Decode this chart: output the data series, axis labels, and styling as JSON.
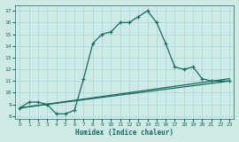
{
  "xlabel": "Humidex (Indice chaleur)",
  "xlim": [
    -0.5,
    23.5
  ],
  "ylim": [
    7.8,
    17.5
  ],
  "xticks": [
    0,
    1,
    2,
    3,
    4,
    5,
    6,
    7,
    8,
    9,
    10,
    11,
    12,
    13,
    14,
    15,
    16,
    17,
    18,
    19,
    20,
    21,
    22,
    23
  ],
  "yticks": [
    8,
    9,
    10,
    11,
    12,
    13,
    14,
    15,
    16,
    17
  ],
  "bg_color": "#ceeae7",
  "grid_color": "#a8d5d1",
  "line_color": "#1a6b5a",
  "line1_x": [
    0,
    23
  ],
  "line1_y": [
    8.7,
    11.0
  ],
  "line2_x": [
    0,
    23
  ],
  "line2_y": [
    8.7,
    11.2
  ],
  "curve_x": [
    0,
    1,
    2,
    3,
    4,
    5,
    6,
    7,
    8,
    9,
    10,
    11,
    12,
    13,
    14,
    15,
    16,
    17,
    18,
    19,
    20,
    21,
    22,
    23
  ],
  "curve_y": [
    8.7,
    9.2,
    9.2,
    9.0,
    8.2,
    8.2,
    8.5,
    11.2,
    14.2,
    15.0,
    15.2,
    16.0,
    16.0,
    16.5,
    17.0,
    16.0,
    14.2,
    12.2,
    12.0,
    12.2,
    11.2,
    11.0,
    11.0,
    11.0
  ]
}
